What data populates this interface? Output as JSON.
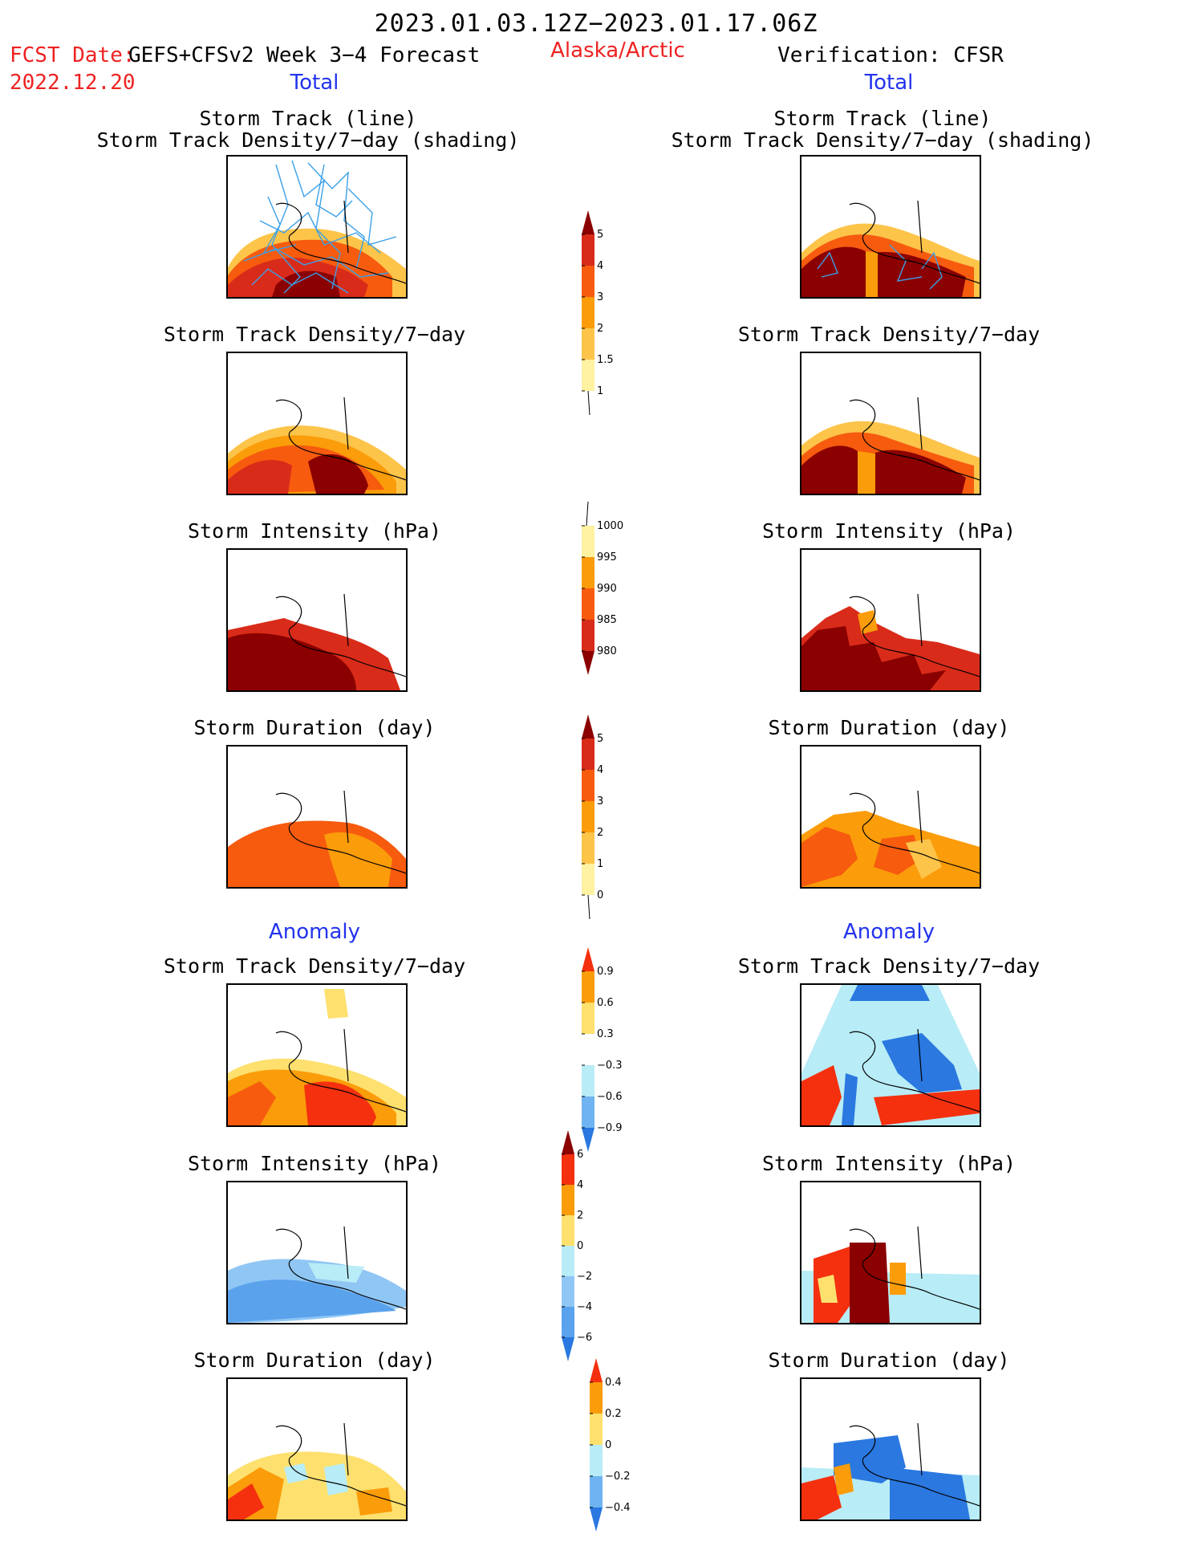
{
  "header": {
    "title": "2023.01.03.12Z−2023.01.17.06Z",
    "fcst_label": "FCST Date:",
    "fcst_model": "GEFS+CFSv2 Week 3−4 Forecast",
    "fcst_date": "2022.12.20",
    "region": "Alaska/Arctic",
    "verification": "Verification: CFSR"
  },
  "sections": {
    "total_left": "Total",
    "total_right": "Total",
    "anomaly_left": "Anomaly",
    "anomaly_right": "Anomaly"
  },
  "panel_titles": {
    "track_line": "Storm Track (line)",
    "track_shading": "Storm Track Density/7−day (shading)",
    "density": "Storm Track Density/7−day",
    "intensity": "Storm Intensity (hPa)",
    "duration": "Storm Duration (day)"
  },
  "colorbars": {
    "density_total": {
      "labels": [
        "5",
        "4",
        "3",
        "2",
        "1.5",
        "1"
      ],
      "colors": [
        "#8b0000",
        "#d92b1a",
        "#f65b0e",
        "#fb9c0a",
        "#fdc44a",
        "#fff2a0"
      ]
    },
    "intensity_total": {
      "labels": [
        "1000",
        "995",
        "990",
        "985",
        "980"
      ],
      "colors": [
        "#fff2a0",
        "#fb9c0a",
        "#f65b0e",
        "#d92b1a",
        "#8b0000"
      ]
    },
    "duration_total": {
      "labels": [
        "5",
        "4",
        "3",
        "2",
        "1",
        "0"
      ],
      "colors": [
        "#8b0000",
        "#d92b1a",
        "#f65b0e",
        "#fb9c0a",
        "#fdc44a",
        "#fff2a0"
      ]
    },
    "density_anom": {
      "labels": [
        "0.9",
        "0.6",
        "0.3",
        "−0.3",
        "−0.6",
        "−0.9"
      ],
      "colors": [
        "#f4300f",
        "#fb9c0a",
        "#fde06e",
        "#ffffff",
        "#b8ecf6",
        "#6fb4f0",
        "#2a78e0"
      ]
    },
    "intensity_anom": {
      "labels": [
        "6",
        "4",
        "2",
        "0",
        "−2",
        "−4",
        "−6"
      ],
      "colors": [
        "#8b0000",
        "#f4300f",
        "#fb9c0a",
        "#fde06e",
        "#b8ecf6",
        "#8fc6f4",
        "#5aa2ec",
        "#2a78e0"
      ]
    },
    "duration_anom": {
      "labels": [
        "0.4",
        "0.2",
        "0",
        "−0.2",
        "−0.4"
      ],
      "colors": [
        "#f4300f",
        "#fb9c0a",
        "#fde06e",
        "#b8ecf6",
        "#6fb4f0",
        "#2a78e0"
      ]
    }
  }
}
